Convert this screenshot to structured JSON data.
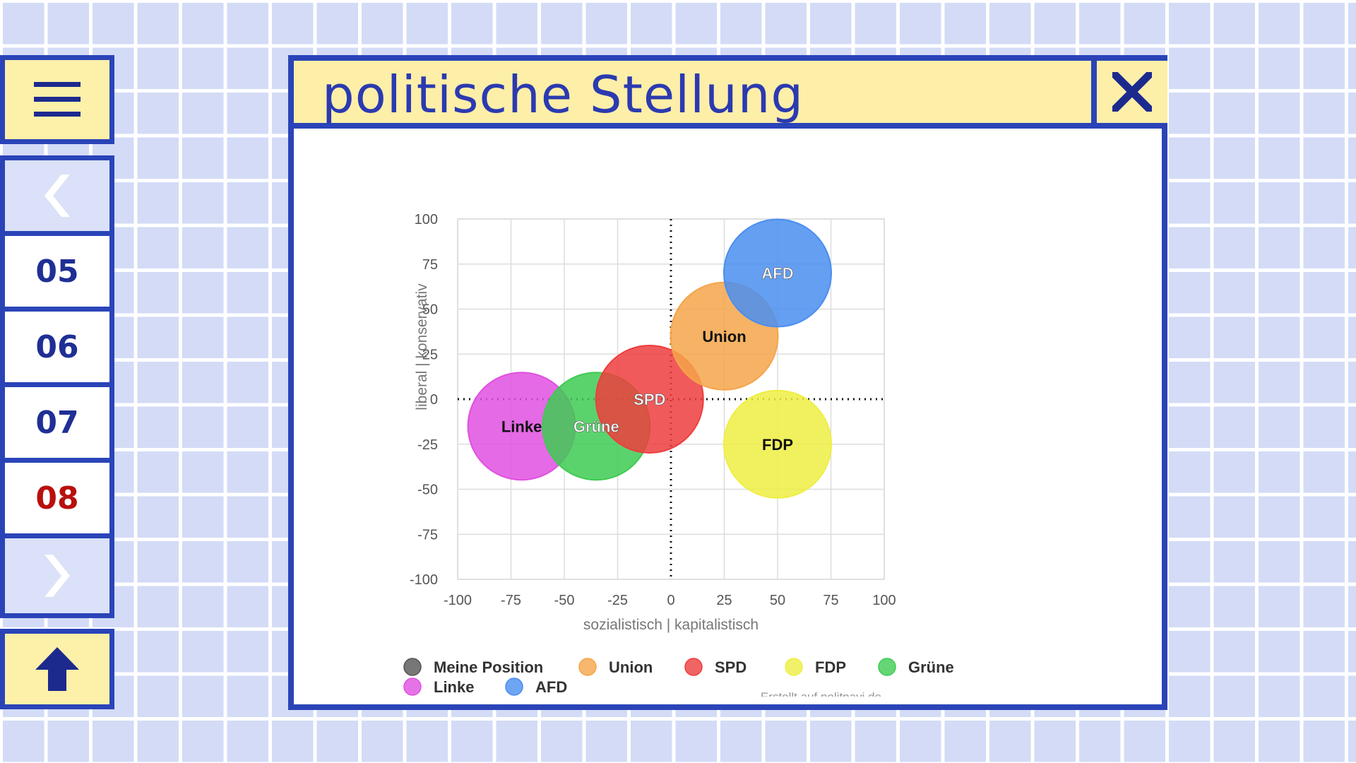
{
  "window": {
    "title": "politische Stellung"
  },
  "sidebar": {
    "pages": [
      {
        "label": "05",
        "active": false
      },
      {
        "label": "06",
        "active": false
      },
      {
        "label": "07",
        "active": false
      },
      {
        "label": "08",
        "active": true
      }
    ],
    "icons": {
      "menu": "hamburger-menu-icon",
      "prev": "chevron-left-icon",
      "next": "chevron-right-icon",
      "top": "arrow-up-icon",
      "close": "close-icon"
    }
  },
  "chart_data": {
    "type": "bubble",
    "xlabel": "sozialistisch | kapitalistisch",
    "ylabel": "liberal | konservativ",
    "xlim": [
      -100,
      100
    ],
    "ylim": [
      -100,
      100
    ],
    "xticks": [
      "-100",
      "-75",
      "-50",
      "-25",
      "0",
      "25",
      "50",
      "75",
      "100"
    ],
    "yticks": [
      "100",
      "75",
      "50",
      "25",
      "0",
      "-25",
      "-50",
      "-75",
      "-100"
    ],
    "grid": true,
    "legend_position": "bottom",
    "credit": "Erstellt auf politnavi.de",
    "legend": [
      {
        "name": "Meine Position",
        "color": "#555555"
      },
      {
        "name": "Union",
        "color": "#f5a54a"
      },
      {
        "name": "SPD",
        "color": "#ee3d3d"
      },
      {
        "name": "FDP",
        "color": "#eeee44"
      },
      {
        "name": "Grüne",
        "color": "#3ecb52"
      },
      {
        "name": "Linke",
        "color": "#e050e0"
      },
      {
        "name": "AFD",
        "color": "#4a8ef0"
      }
    ],
    "points": [
      {
        "name": "Linke",
        "x": -70,
        "y": -15,
        "color": "#e050e0"
      },
      {
        "name": "Grüne",
        "x": -35,
        "y": -15,
        "color": "#3ecb52"
      },
      {
        "name": "SPD",
        "x": -10,
        "y": 0,
        "color": "#ee3d3d"
      },
      {
        "name": "Union",
        "x": 25,
        "y": 35,
        "color": "#f5a54a"
      },
      {
        "name": "AFD",
        "x": 50,
        "y": 70,
        "color": "#4a8ef0"
      },
      {
        "name": "FDP",
        "x": 50,
        "y": -25,
        "color": "#eeee44"
      }
    ]
  }
}
